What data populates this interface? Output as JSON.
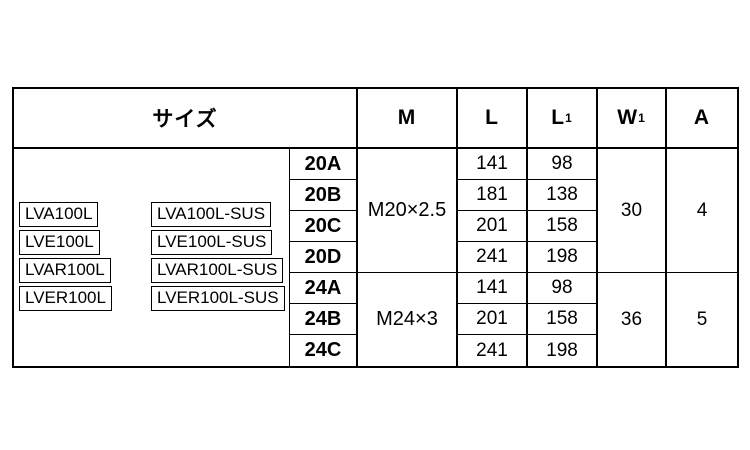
{
  "table": {
    "header": {
      "size": "サイズ",
      "m": "M",
      "l": "L",
      "l1_base": "L",
      "l1_sub": "1",
      "w1_base": "W",
      "w1_sub": "1",
      "a": "A"
    },
    "products": {
      "standard": [
        "LVA100L",
        "LVE100L",
        "LVAR100L",
        "LVER100L"
      ],
      "sus": [
        "LVA100L-SUS",
        "LVE100L-SUS",
        "LVAR100L-SUS",
        "LVER100L-SUS"
      ]
    },
    "groups": [
      {
        "m": "M20×2.5",
        "w1": "30",
        "a": "4",
        "rows": [
          {
            "code": "20A",
            "l": "141",
            "l1": "98"
          },
          {
            "code": "20B",
            "l": "181",
            "l1": "138"
          },
          {
            "code": "20C",
            "l": "201",
            "l1": "158"
          },
          {
            "code": "20D",
            "l": "241",
            "l1": "198"
          }
        ]
      },
      {
        "m": "M24×3",
        "w1": "36",
        "a": "5",
        "rows": [
          {
            "code": "24A",
            "l": "141",
            "l1": "98"
          },
          {
            "code": "24B",
            "l": "201",
            "l1": "158"
          },
          {
            "code": "24C",
            "l": "241",
            "l1": "198"
          }
        ]
      }
    ]
  },
  "colors": {
    "border": "#000000",
    "background": "#ffffff",
    "text": "#000000"
  }
}
